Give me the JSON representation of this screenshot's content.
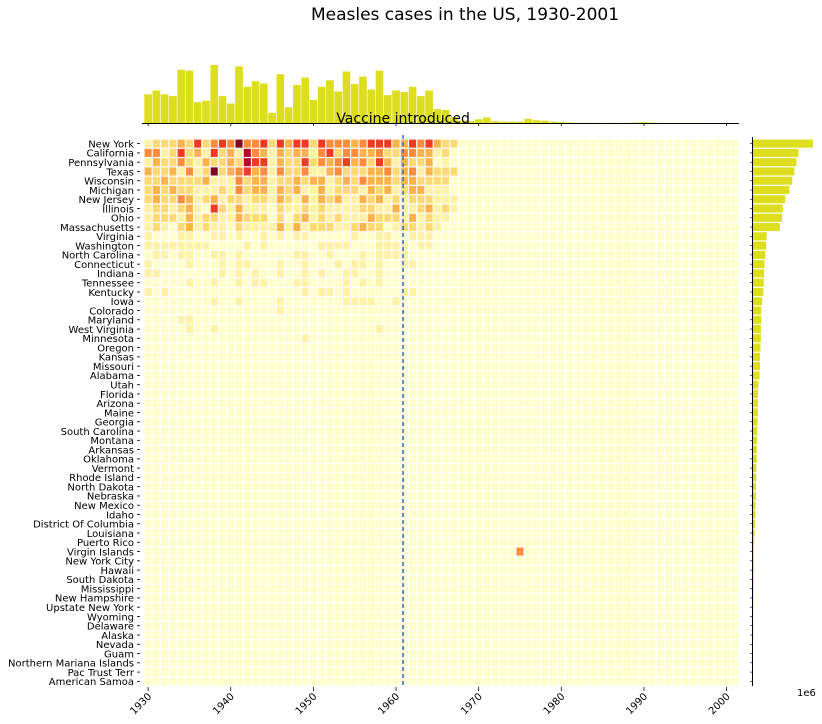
{
  "chart_data": {
    "type": "heatmap",
    "title": "Measles cases in the US, 1930-2001",
    "annotation": "Vaccine introduced",
    "vaccine_year": 1961,
    "x_range": [
      1930,
      2001
    ],
    "x_ticks": [
      "1930",
      "1940",
      "1950",
      "1960",
      "1970",
      "1980",
      "1990",
      "2000"
    ],
    "right_axis_scale_label": "1e6",
    "colormap": [
      "#ffffcc",
      "#fff1a8",
      "#fed976",
      "#feb24c",
      "#fd8d3c",
      "#f03b20",
      "#bd0026",
      "#800026"
    ],
    "bar_color": "#dede20",
    "states": [
      "New York",
      "California",
      "Pennsylvania",
      "Texas",
      "Wisconsin",
      "Michigan",
      "New Jersey",
      "Illinois",
      "Ohio",
      "Massachusetts",
      "Virginia",
      "Washington",
      "North Carolina",
      "Connecticut",
      "Indiana",
      "Tennessee",
      "Kentucky",
      "Iowa",
      "Colorado",
      "Maryland",
      "West Virginia",
      "Minnesota",
      "Oregon",
      "Kansas",
      "Missouri",
      "Alabama",
      "Utah",
      "Florida",
      "Arizona",
      "Maine",
      "Georgia",
      "South Carolina",
      "Montana",
      "Arkansas",
      "Oklahoma",
      "Vermont",
      "Rhode Island",
      "North Dakota",
      "Nebraska",
      "New Mexico",
      "Idaho",
      "District Of Columbia",
      "Louisiana",
      "Puerto Rico",
      "Virgin Islands",
      "New York City",
      "Hawaii",
      "South Dakota",
      "Mississippi",
      "New Hampshire",
      "Upstate New York",
      "Wyoming",
      "Delaware",
      "Alaska",
      "Nevada",
      "Guam",
      "Northern Mariana Islands",
      "Pac Trust Terr",
      "American Samoa"
    ],
    "state_totals": [
      1.45,
      1.1,
      1.05,
      1.0,
      0.95,
      0.88,
      0.78,
      0.72,
      0.7,
      0.65,
      0.33,
      0.32,
      0.3,
      0.28,
      0.27,
      0.26,
      0.25,
      0.22,
      0.2,
      0.2,
      0.19,
      0.19,
      0.18,
      0.17,
      0.17,
      0.16,
      0.13,
      0.12,
      0.12,
      0.12,
      0.11,
      0.1,
      0.1,
      0.09,
      0.09,
      0.08,
      0.08,
      0.07,
      0.07,
      0.06,
      0.06,
      0.05,
      0.04,
      0.03,
      0.02,
      0.02,
      0.02,
      0.015,
      0.012,
      0.01,
      0.008,
      0.006,
      0.005,
      0.004,
      0.003,
      0.002,
      0.001,
      0.001,
      0.001
    ],
    "yearly_totals": [
      0.62,
      0.7,
      0.62,
      0.58,
      1.15,
      1.13,
      0.45,
      0.48,
      1.25,
      0.58,
      0.42,
      1.22,
      0.78,
      0.9,
      0.85,
      0.22,
      1.05,
      0.34,
      0.82,
      0.98,
      0.5,
      0.78,
      0.92,
      0.68,
      1.11,
      0.84,
      1.0,
      0.72,
      1.13,
      0.6,
      0.7,
      0.67,
      0.78,
      0.58,
      0.7,
      0.3,
      0.28,
      0.13,
      0.05,
      0.04,
      0.08,
      0.12,
      0.04,
      0.03,
      0.03,
      0.03,
      0.09,
      0.06,
      0.05,
      0.03,
      0.02,
      0.01,
      0.005,
      0.004,
      0.004,
      0.003,
      0.004,
      0.003,
      0.004,
      0.01,
      0.02,
      0.008,
      0.003,
      0.002,
      0.002,
      0.002,
      0.002,
      0.002,
      0.001,
      0.001,
      0.001,
      0.001
    ],
    "hotspots": [
      {
        "state": "New York",
        "year": 1941,
        "level": 7
      },
      {
        "state": "Texas",
        "year": 1938,
        "level": 7
      },
      {
        "state": "Pennsylvania",
        "year": 1942,
        "level": 6
      },
      {
        "state": "California",
        "year": 1942,
        "level": 6
      },
      {
        "state": "Illinois",
        "year": 1938,
        "level": 5
      },
      {
        "state": "Virgin Islands",
        "year": 1975,
        "level": 4
      }
    ]
  }
}
